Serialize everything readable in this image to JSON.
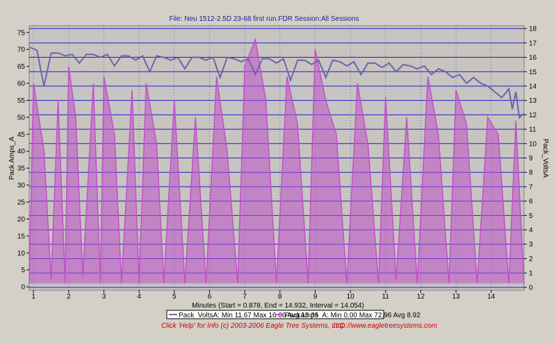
{
  "title": "File: Neu 1512-2.5D 23-68 first run.FDR   Session:All Sessions",
  "xlabel": "Minutes (Start = 0.878,  End = 14.932, Interval = 14.054)",
  "legend": [
    "Pack_VoltsA:  Min 11.67 Max 16.66 Avg 15.35",
    "PackAmps_A:  Min 0.00 Max 72.96 Avg 8.92"
  ],
  "footer": {
    "help": "Click 'Help' for Info  (c) 2003-2006 Eagle Tree Systems, LLC",
    "url": "http://www.eagletreesystems.com"
  },
  "colors": {
    "plot_bg": "#c8c4c0",
    "grid": "#1b1bd0",
    "volts": "#6b64aa",
    "amps": "#c050c8",
    "title": "#1c1c8c",
    "footer": "#cc0000"
  },
  "chart_data": {
    "type": "line",
    "title": "File: Neu 1512-2.5D 23-68 first run.FDR   Session:All Sessions",
    "xlabel": "Minutes (Start = 0.878,  End = 14.932, Interval = 14.054)",
    "ylabel_left": "Pack Amps_A",
    "ylabel_right": "Pack_VoltsA",
    "xlim": [
      0.878,
      14.932
    ],
    "ylim_left": [
      -1,
      77
    ],
    "ylim_right": [
      -0.2,
      18.2
    ],
    "x_ticks": [
      1,
      2,
      3,
      4,
      5,
      6,
      7,
      8,
      9,
      10,
      11,
      12,
      13,
      14
    ],
    "y_left_ticks": [
      0,
      5,
      10,
      15,
      20,
      25,
      30,
      35,
      40,
      45,
      50,
      55,
      60,
      65,
      70,
      75
    ],
    "y_right_ticks": [
      0,
      1,
      2,
      3,
      4,
      5,
      6,
      7,
      8,
      9,
      10,
      11,
      12,
      13,
      14,
      15,
      16,
      17,
      18
    ],
    "grid": true,
    "series": [
      {
        "name": "Pack_VoltsA",
        "axis": "right",
        "color": "#6b64aa",
        "x": [
          0.88,
          1.0,
          1.1,
          1.2,
          1.3,
          1.5,
          1.7,
          1.9,
          2.1,
          2.3,
          2.5,
          2.7,
          2.9,
          3.1,
          3.3,
          3.5,
          3.7,
          3.9,
          4.1,
          4.3,
          4.5,
          4.7,
          4.9,
          5.1,
          5.3,
          5.5,
          5.7,
          5.9,
          6.1,
          6.3,
          6.5,
          6.7,
          6.9,
          7.1,
          7.3,
          7.5,
          7.7,
          7.9,
          8.1,
          8.3,
          8.5,
          8.7,
          8.9,
          9.1,
          9.3,
          9.5,
          9.7,
          9.9,
          10.1,
          10.3,
          10.5,
          10.7,
          10.9,
          11.1,
          11.3,
          11.5,
          11.7,
          11.9,
          12.1,
          12.3,
          12.5,
          12.7,
          12.9,
          13.1,
          13.3,
          13.5,
          13.7,
          13.9,
          14.1,
          14.3,
          14.5,
          14.6,
          14.7,
          14.8,
          14.93
        ],
        "y": [
          16.7,
          16.6,
          16.5,
          15.2,
          14.0,
          16.3,
          16.3,
          16.1,
          16.2,
          15.6,
          16.2,
          16.2,
          16.0,
          16.2,
          15.4,
          16.1,
          16.1,
          15.8,
          16.1,
          15.0,
          16.1,
          16.0,
          15.8,
          16.0,
          15.2,
          16.0,
          16.0,
          15.8,
          16.0,
          14.6,
          16.0,
          15.9,
          15.7,
          15.9,
          14.8,
          15.9,
          15.9,
          15.6,
          15.9,
          14.4,
          15.8,
          15.8,
          15.5,
          15.8,
          14.6,
          15.8,
          15.7,
          15.4,
          15.7,
          14.8,
          15.6,
          15.6,
          15.3,
          15.6,
          15.0,
          15.5,
          15.4,
          15.2,
          15.4,
          14.8,
          15.2,
          15.0,
          14.6,
          14.8,
          14.2,
          14.6,
          14.2,
          14.0,
          13.6,
          13.2,
          13.8,
          12.4,
          13.6,
          11.8,
          12.1
        ]
      },
      {
        "name": "PackAmps_A",
        "axis": "left",
        "color": "#c050c8",
        "x": [
          0.88,
          1.0,
          1.3,
          1.5,
          1.7,
          1.9,
          2.0,
          2.2,
          2.4,
          2.7,
          2.9,
          3.0,
          3.3,
          3.5,
          3.8,
          4.0,
          4.2,
          4.5,
          4.7,
          5.0,
          5.3,
          5.6,
          5.9,
          6.2,
          6.5,
          6.8,
          7.0,
          7.3,
          7.6,
          7.9,
          8.2,
          8.5,
          8.8,
          9.0,
          9.3,
          9.6,
          9.9,
          10.2,
          10.5,
          10.8,
          11.0,
          11.3,
          11.6,
          11.9,
          12.2,
          12.5,
          12.8,
          13.0,
          13.3,
          13.6,
          13.9,
          14.2,
          14.5,
          14.7,
          14.93
        ],
        "y": [
          1,
          60,
          40,
          2,
          55,
          1,
          65,
          50,
          3,
          60,
          1,
          62,
          45,
          1,
          58,
          1,
          60,
          42,
          1,
          55,
          1,
          50,
          1,
          62,
          40,
          1,
          65,
          72.96,
          55,
          1,
          62,
          48,
          1,
          70,
          55,
          45,
          1,
          60,
          42,
          1,
          56,
          2,
          50,
          1,
          62,
          45,
          1,
          58,
          48,
          1,
          50,
          45,
          1,
          49,
          1
        ]
      }
    ]
  }
}
